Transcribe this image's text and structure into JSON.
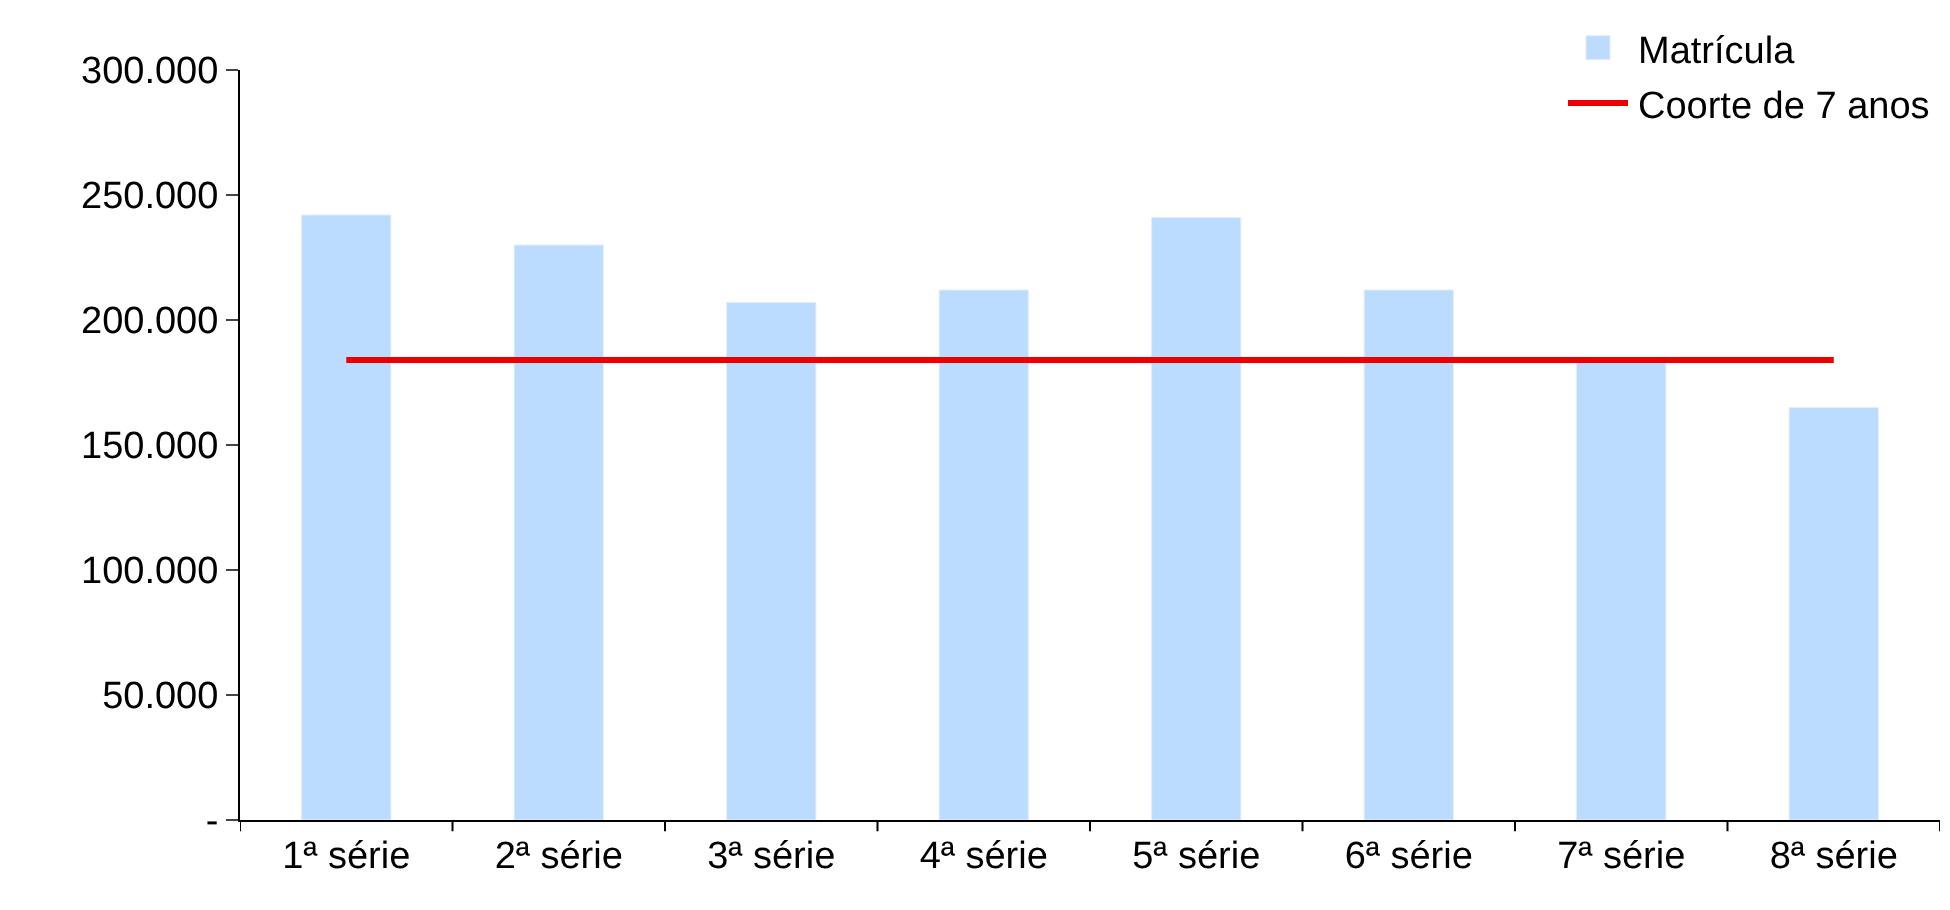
{
  "chart_data": {
    "type": "bar",
    "categories": [
      "1ª série",
      "2ª série",
      "3ª série",
      "4ª série",
      "5ª série",
      "6ª série",
      "7ª série",
      "8ª série"
    ],
    "series": [
      {
        "name": "Matrícula",
        "color": "#bbdcff",
        "values": [
          242000,
          230000,
          207000,
          212000,
          241000,
          212000,
          184000,
          165000
        ]
      },
      {
        "name": "Coorte de 7 anos",
        "type": "line",
        "color": "#ee0000",
        "marker": "none",
        "values": [
          184000,
          184000,
          184000,
          184000,
          184000,
          184000,
          184000,
          184000
        ]
      }
    ],
    "ylim": [
      0,
      300000
    ],
    "yticks": [
      {
        "value": 0,
        "label": "-"
      },
      {
        "value": 50000,
        "label": "50.000"
      },
      {
        "value": 100000,
        "label": "100.000"
      },
      {
        "value": 150000,
        "label": "150.000"
      },
      {
        "value": 200000,
        "label": "200.000"
      },
      {
        "value": 250000,
        "label": "250.000"
      },
      {
        "value": 300000,
        "label": "300.000"
      }
    ],
    "legend": "top right"
  }
}
